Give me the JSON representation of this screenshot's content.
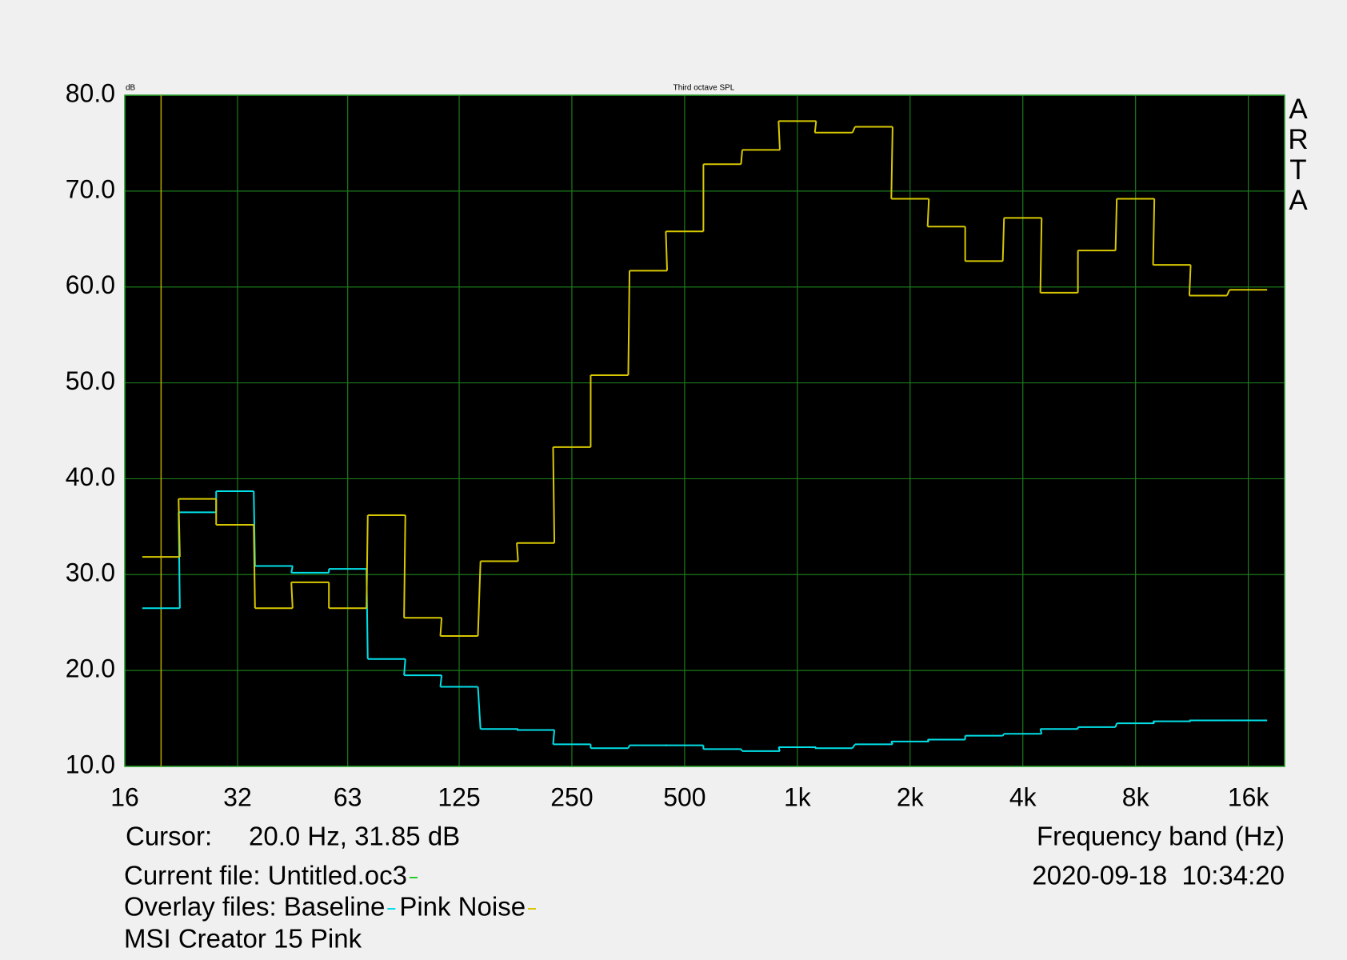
{
  "chart_data": {
    "type": "line",
    "step": true,
    "title": "Third octave SPL",
    "y_unit": "dB",
    "xlabel": "Frequency band (Hz)",
    "xscale": "log",
    "grid": true,
    "x": [
      20,
      25,
      31.5,
      40,
      50,
      63,
      80,
      100,
      125,
      160,
      200,
      250,
      315,
      400,
      500,
      630,
      800,
      1000,
      1250,
      1600,
      2000,
      2500,
      3150,
      4000,
      5000,
      6300,
      8000,
      10000,
      12500,
      16000
    ],
    "series": [
      {
        "name": "Baseline",
        "color": "#00e0e8",
        "values": [
          26.5,
          36.5,
          38.7,
          30.9,
          30.2,
          30.6,
          21.2,
          19.5,
          18.3,
          13.9,
          13.8,
          12.3,
          11.9,
          12.2,
          12.2,
          11.8,
          11.6,
          12.0,
          11.9,
          12.3,
          12.6,
          12.8,
          13.2,
          13.4,
          13.9,
          14.1,
          14.5,
          14.7,
          14.8,
          14.8
        ]
      },
      {
        "name": "Pink Noise",
        "color": "#d8c800",
        "values": [
          31.85,
          37.9,
          35.2,
          26.5,
          29.2,
          26.5,
          36.2,
          25.5,
          23.6,
          31.4,
          33.3,
          43.3,
          50.8,
          61.7,
          65.8,
          72.8,
          74.3,
          77.3,
          76.1,
          76.7,
          69.2,
          66.3,
          62.7,
          67.2,
          59.4,
          63.8,
          69.2,
          62.3,
          59.1,
          59.7
        ]
      }
    ],
    "xlim": [
      16,
      20000
    ],
    "ylim": [
      10,
      80
    ],
    "xticks": [
      16,
      32,
      63,
      125,
      250,
      500,
      {
        "value": 1000,
        "label": "1k"
      },
      {
        "value": 2000,
        "label": "2k"
      },
      {
        "value": 4000,
        "label": "4k"
      },
      {
        "value": 8000,
        "label": "8k"
      },
      {
        "value": 16000,
        "label": "16k"
      }
    ],
    "yticks": [
      {
        "value": 10,
        "label": "10.0"
      },
      {
        "value": 20,
        "label": "20.0"
      },
      {
        "value": 30,
        "label": "30.0"
      },
      {
        "value": 40,
        "label": "40.0"
      },
      {
        "value": 50,
        "label": "50.0"
      },
      {
        "value": 60,
        "label": "60.0"
      },
      {
        "value": 70,
        "label": "70.0"
      },
      {
        "value": 80,
        "label": "80.0"
      }
    ],
    "cursor": {
      "label": "Cursor:",
      "readout": "20.0 Hz, 31.85 dB",
      "x": 20,
      "color": "#b8a800"
    },
    "current_file": {
      "label": "Current file: Untitled.oc3",
      "color": "#22d022"
    },
    "overlay_label": "Overlay files:",
    "note": "MSI Creator 15 Pink",
    "timestamp": "2020-09-18  10:34:20",
    "watermark": "ARTA"
  }
}
